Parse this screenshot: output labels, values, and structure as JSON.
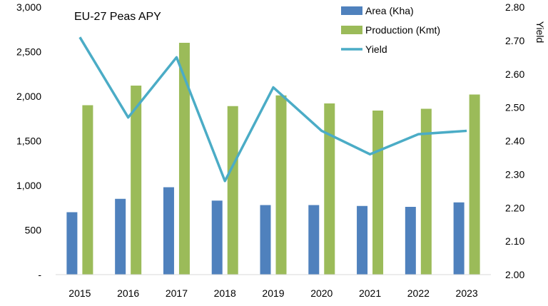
{
  "chart_data": {
    "type": "bar",
    "title": "EU-27  Peas APY",
    "categories": [
      "2015",
      "2016",
      "2017",
      "2018",
      "2019",
      "2020",
      "2021",
      "2022",
      "2023"
    ],
    "series": [
      {
        "name": "Area (Kha)",
        "kind": "bar",
        "axis": "left",
        "color": "#4F81BD",
        "values": [
          700,
          850,
          980,
          830,
          780,
          780,
          770,
          760,
          810
        ]
      },
      {
        "name": "Production (Kmt)",
        "kind": "bar",
        "axis": "left",
        "color": "#9BBB59",
        "values": [
          1900,
          2120,
          2600,
          1890,
          2010,
          1920,
          1840,
          1860,
          2020
        ]
      },
      {
        "name": "Yield",
        "kind": "line",
        "axis": "right",
        "color": "#4BACC6",
        "values": [
          2.71,
          2.47,
          2.65,
          2.28,
          2.56,
          2.43,
          2.36,
          2.42,
          2.43
        ]
      }
    ],
    "left_axis": {
      "min": 0,
      "max": 3000,
      "step": 500,
      "tick_labels": [
        "-",
        "500",
        "1,000",
        "1,500",
        "2,000",
        "2,500",
        "3,000"
      ]
    },
    "right_axis": {
      "label": "Yield",
      "min": 2.0,
      "max": 2.8,
      "step": 0.1,
      "tick_labels": [
        "2.00",
        "2.10",
        "2.20",
        "2.30",
        "2.40",
        "2.50",
        "2.60",
        "2.70",
        "2.80"
      ]
    },
    "legend_position": "top-right",
    "grid": false
  }
}
